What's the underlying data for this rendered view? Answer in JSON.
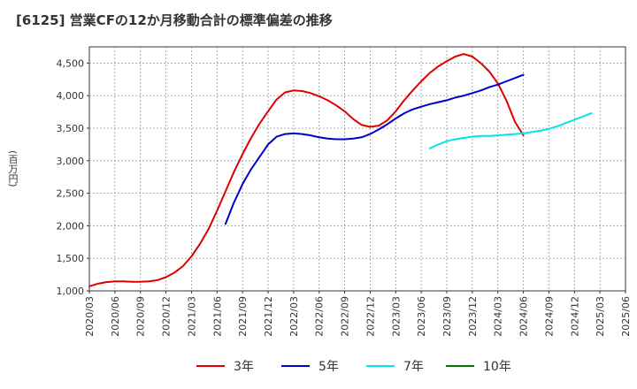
{
  "title": "[6125]  営業CFの12か月移動合計の標準偏差の推移",
  "chart_data": {
    "type": "line",
    "title": "[6125]  営業CFの12か月移動合計の標準偏差の推移",
    "ylabel": "(百万円)",
    "xlabel": "",
    "ylim": [
      1000,
      4750
    ],
    "yticks": [
      1000,
      1500,
      2000,
      2500,
      3000,
      3500,
      4000,
      4500
    ],
    "ytick_labels": [
      "1,000",
      "1,500",
      "2,000",
      "2,500",
      "3,000",
      "3,500",
      "4,000",
      "4,500"
    ],
    "x_labels": [
      "2020/03",
      "2020/06",
      "2020/09",
      "2020/12",
      "2021/03",
      "2021/06",
      "2021/09",
      "2021/12",
      "2022/03",
      "2022/06",
      "2022/09",
      "2022/12",
      "2023/03",
      "2023/06",
      "2023/09",
      "2023/12",
      "2024/03",
      "2024/06",
      "2024/09",
      "2024/12",
      "2025/03",
      "2025/06"
    ],
    "grid": true,
    "legend_position": "bottom",
    "series": [
      {
        "name": "3年",
        "color": "#dd0000",
        "start_index": 0,
        "values": [
          1070,
          1110,
          1135,
          1145,
          1145,
          1140,
          1140,
          1145,
          1165,
          1210,
          1280,
          1380,
          1530,
          1720,
          1950,
          2230,
          2530,
          2830,
          3100,
          3350,
          3570,
          3760,
          3940,
          4050,
          4080,
          4070,
          4040,
          3990,
          3930,
          3850,
          3760,
          3640,
          3550,
          3520,
          3540,
          3620,
          3760,
          3930,
          4080,
          4220,
          4350,
          4450,
          4530,
          4600,
          4640,
          4600,
          4500,
          4370,
          4190,
          3930,
          3600,
          3390
        ]
      },
      {
        "name": "5年",
        "color": "#0000cc",
        "start_index": 16,
        "values": [
          2030,
          2360,
          2640,
          2870,
          3060,
          3250,
          3370,
          3410,
          3420,
          3410,
          3390,
          3360,
          3340,
          3330,
          3330,
          3340,
          3360,
          3410,
          3480,
          3560,
          3650,
          3730,
          3790,
          3830,
          3870,
          3900,
          3930,
          3970,
          4000,
          4040,
          4080,
          4130,
          4170,
          4220,
          4270,
          4320
        ]
      },
      {
        "name": "7年",
        "color": "#00e5e5",
        "start_index": 40,
        "values": [
          3190,
          3250,
          3300,
          3330,
          3350,
          3370,
          3380,
          3380,
          3390,
          3400,
          3410,
          3420,
          3440,
          3460,
          3490,
          3530,
          3580,
          3630,
          3680,
          3730
        ]
      },
      {
        "name": "10年",
        "color": "#007700",
        "start_index": 0,
        "values": []
      }
    ]
  }
}
